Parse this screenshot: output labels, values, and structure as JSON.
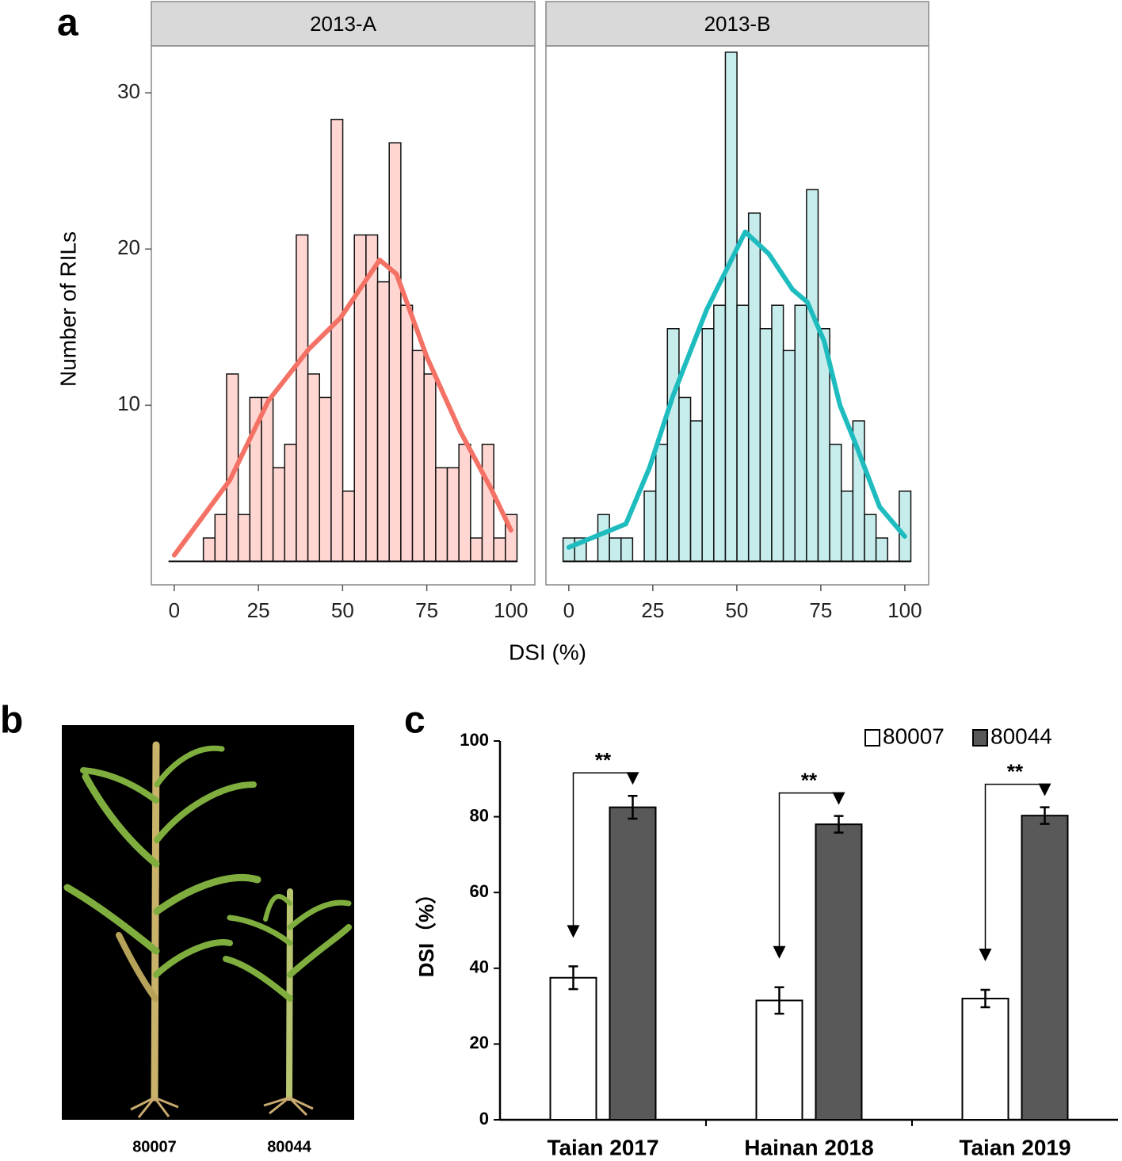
{
  "panel_labels": [
    "a",
    "b",
    "c"
  ],
  "panel_a": {
    "xlabel": "DSI (%)",
    "ylabel": "Number of RILs"
  },
  "photo_labels": [
    "80007",
    "80044"
  ],
  "chart_data": [
    {
      "type": "histogram",
      "title": "2013-A",
      "color": "#ffd6d2",
      "line_color": "#f47265",
      "bins": [
        -1.7,
        1.75,
        5.2,
        8.65,
        12.1,
        15.55,
        19,
        22.45,
        25.9,
        29.35,
        32.8,
        36.25,
        39.7,
        43.15,
        46.6,
        50.05,
        53.5,
        56.95,
        60.4,
        63.85,
        67.3,
        70.75,
        74.2,
        77.65,
        81.1,
        84.55,
        88,
        91.45,
        94.9,
        98.35,
        101.8
      ],
      "values": [
        0,
        0,
        0,
        1.5,
        3,
        12,
        3,
        10.5,
        10.5,
        6,
        7.5,
        20.9,
        12,
        10.5,
        28.3,
        4.5,
        20.9,
        20.9,
        17.9,
        26.8,
        16.4,
        13.5,
        12,
        6,
        6,
        7.5,
        1.5,
        7.5,
        1.5,
        3
      ],
      "density": {
        "x": [
          0,
          16.5,
          28,
          40,
          49.4,
          61,
          66,
          75,
          85,
          94,
          100
        ],
        "values": [
          0.4,
          5.2,
          10.3,
          13.6,
          15.6,
          19.3,
          18.4,
          13.1,
          8.3,
          4.7,
          2.0
        ]
      },
      "xlim": [
        -6.8,
        107.1
      ],
      "xticks": [
        0,
        25,
        50,
        75,
        100
      ],
      "ylim": [
        -1.5,
        33
      ],
      "yticks": [
        10,
        20,
        30
      ]
    },
    {
      "type": "histogram",
      "title": "2013-B",
      "color": "#c6ecec",
      "line_color": "#1fbcbf",
      "bins": [
        -1.7,
        1.75,
        5.2,
        8.65,
        12.1,
        15.55,
        19,
        22.45,
        25.9,
        29.35,
        32.8,
        36.25,
        39.7,
        43.15,
        46.6,
        50.05,
        53.5,
        56.95,
        60.4,
        63.85,
        67.3,
        70.75,
        74.2,
        77.65,
        81.1,
        84.55,
        88,
        91.45,
        94.9,
        98.35,
        101.8
      ],
      "values": [
        1.5,
        1.5,
        0,
        3,
        1.5,
        1.5,
        0,
        4.5,
        7.5,
        14.9,
        10.5,
        9,
        14.9,
        16.4,
        32.6,
        16.4,
        22.3,
        14.9,
        16.4,
        13.5,
        16.4,
        23.8,
        14.9,
        7.5,
        4.5,
        9,
        3,
        1.5,
        0,
        4.5
      ],
      "density": {
        "x": [
          0,
          17,
          24,
          31,
          41,
          52.5,
          59.5,
          66.6,
          71,
          76,
          80.7,
          85.4,
          92.5,
          100
        ],
        "values": [
          0.9,
          2.4,
          6,
          10.6,
          16.1,
          21.1,
          19.7,
          17.4,
          16.6,
          14.1,
          10,
          7.5,
          3.5,
          1.6
        ]
      },
      "xlim": [
        -6.8,
        107.1
      ],
      "xticks": [
        0,
        25,
        50,
        75,
        100
      ],
      "ylim": [
        -1.5,
        33
      ]
    },
    {
      "type": "bar",
      "ylabel": "DSI（%）",
      "categories": [
        "Taian 2017",
        "Hainan 2018",
        "Taian 2019"
      ],
      "series": [
        {
          "name": "80007",
          "color": "#ffffff",
          "values": [
            37.5,
            31.5,
            32
          ],
          "errors": [
            3,
            3.5,
            2.3
          ]
        },
        {
          "name": "80044",
          "color": "#595959",
          "values": [
            82.5,
            78,
            80.3
          ],
          "errors": [
            3,
            2.2,
            2.2
          ]
        }
      ],
      "annotations": [
        "**",
        "**",
        "**"
      ],
      "ylim": [
        0,
        100
      ],
      "yticks": [
        0,
        20,
        40,
        60,
        80,
        100
      ],
      "legend": "top-right"
    }
  ]
}
